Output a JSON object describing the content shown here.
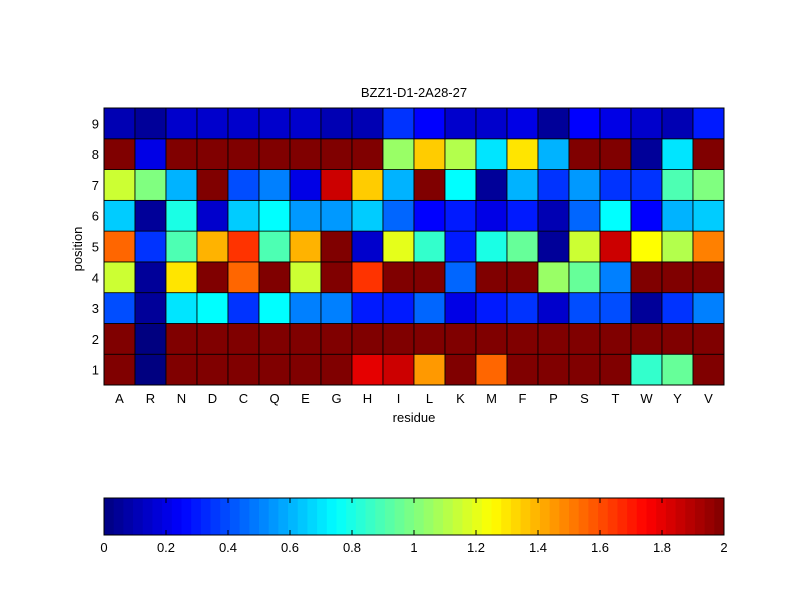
{
  "chart_data": {
    "type": "heatmap",
    "title": "BZZ1-D1-2A28-27",
    "xlabel": "residue",
    "ylabel": "position",
    "x_categories": [
      "A",
      "R",
      "N",
      "D",
      "C",
      "Q",
      "E",
      "G",
      "H",
      "I",
      "L",
      "K",
      "M",
      "F",
      "P",
      "S",
      "T",
      "W",
      "Y",
      "V"
    ],
    "y_categories": [
      "1",
      "2",
      "3",
      "4",
      "5",
      "6",
      "7",
      "8",
      "9"
    ],
    "values": [
      [
        2.0,
        0.0,
        2.0,
        2.0,
        2.0,
        2.0,
        2.0,
        2.0,
        1.8,
        1.85,
        1.45,
        2.0,
        1.55,
        2.0,
        2.0,
        2.0,
        2.0,
        0.85,
        0.95,
        2.0
      ],
      [
        2.0,
        0.0,
        2.0,
        2.0,
        2.0,
        2.0,
        2.0,
        2.0,
        2.0,
        2.0,
        2.0,
        2.0,
        2.0,
        2.0,
        2.0,
        2.0,
        2.0,
        2.0,
        2.0,
        2.0
      ],
      [
        0.4,
        0.05,
        0.7,
        0.75,
        0.35,
        0.75,
        0.5,
        0.5,
        0.3,
        0.3,
        0.45,
        0.2,
        0.3,
        0.35,
        0.15,
        0.4,
        0.4,
        0.05,
        0.35,
        0.5
      ],
      [
        1.15,
        0.05,
        1.3,
        2.0,
        1.55,
        2.0,
        1.15,
        2.0,
        1.65,
        2.0,
        2.0,
        0.45,
        2.0,
        2.0,
        1.05,
        0.95,
        0.5,
        2.0,
        2.0,
        2.0
      ],
      [
        1.55,
        0.35,
        0.9,
        1.4,
        1.65,
        0.9,
        1.4,
        2.0,
        0.15,
        1.2,
        0.85,
        0.3,
        0.8,
        0.95,
        0.05,
        1.15,
        1.85,
        1.25,
        1.1,
        1.5
      ],
      [
        0.65,
        0.05,
        0.8,
        0.15,
        0.65,
        0.75,
        0.55,
        0.55,
        0.65,
        0.45,
        0.25,
        0.3,
        0.2,
        0.3,
        0.1,
        0.45,
        0.75,
        0.25,
        0.6,
        0.65
      ],
      [
        1.15,
        1.0,
        0.6,
        2.0,
        0.4,
        0.5,
        0.2,
        1.85,
        1.35,
        0.6,
        2.0,
        0.75,
        0.05,
        0.6,
        0.35,
        0.55,
        0.35,
        0.35,
        0.9,
        1.0
      ],
      [
        2.0,
        0.2,
        2.0,
        2.0,
        2.0,
        2.0,
        2.0,
        2.0,
        2.0,
        1.05,
        1.35,
        1.1,
        0.7,
        1.3,
        0.6,
        2.0,
        2.0,
        0.05,
        0.7,
        2.0
      ],
      [
        0.1,
        0.05,
        0.15,
        0.15,
        0.15,
        0.15,
        0.15,
        0.1,
        0.1,
        0.35,
        0.25,
        0.15,
        0.15,
        0.2,
        0.05,
        0.25,
        0.2,
        0.15,
        0.1,
        0.3
      ]
    ],
    "colormap": "jet",
    "colorbar": {
      "orientation": "horizontal",
      "placement": "bottom",
      "range": [
        0,
        2
      ],
      "ticks": [
        "0",
        "0.2",
        "0.4",
        "0.6",
        "0.8",
        "1",
        "1.2",
        "1.4",
        "1.6",
        "1.8",
        "2"
      ],
      "levels": 64
    }
  }
}
